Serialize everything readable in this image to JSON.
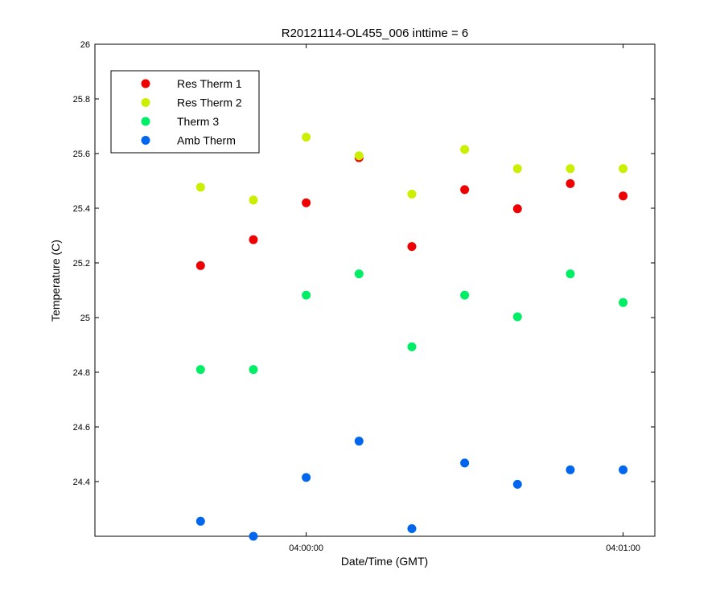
{
  "chart_data": {
    "type": "scatter",
    "title": "R20121114-OL455_006 inttime = 6",
    "xlabel": "Date/Time (GMT)",
    "ylabel": "Temperature (C)",
    "x_unit": "time",
    "xlim": [
      "03:59:20",
      "04:01:06"
    ],
    "ylim": [
      24.2,
      26.0
    ],
    "yticks": [
      24.4,
      24.6,
      24.8,
      25.0,
      25.2,
      25.4,
      25.6,
      25.8,
      26.0
    ],
    "ytick_labels": [
      "24.4",
      "24.6",
      "24.8",
      "25",
      "25.2",
      "25.4",
      "25.6",
      "25.8",
      "26"
    ],
    "xticks": [
      "04:00:00",
      "04:01:00"
    ],
    "xtick_labels": [
      "04:00:00",
      "04:01:00"
    ],
    "grid": false,
    "legend_position": "top-left",
    "x": [
      "03:59:40",
      "03:59:50",
      "04:00:00",
      "04:00:10",
      "04:00:20",
      "04:00:30",
      "04:00:40",
      "04:00:50",
      "04:01:00"
    ],
    "series": [
      {
        "name": "Res Therm 1",
        "color": "#ee0000",
        "values": [
          25.19,
          25.285,
          25.42,
          25.585,
          25.26,
          25.468,
          25.398,
          25.49,
          25.445
        ]
      },
      {
        "name": "Res Therm 2",
        "color": "#ccee00",
        "values": [
          25.477,
          25.43,
          25.66,
          25.592,
          25.452,
          25.615,
          25.545,
          25.545,
          25.545
        ]
      },
      {
        "name": "Therm 3",
        "color": "#00ee66",
        "values": [
          24.81,
          24.81,
          25.082,
          25.16,
          24.893,
          25.082,
          25.003,
          25.16,
          25.055
        ]
      },
      {
        "name": "Amb Therm",
        "color": "#0066ee",
        "values": [
          24.255,
          24.2,
          24.415,
          24.548,
          24.228,
          24.468,
          24.39,
          24.443,
          24.443
        ]
      }
    ]
  }
}
